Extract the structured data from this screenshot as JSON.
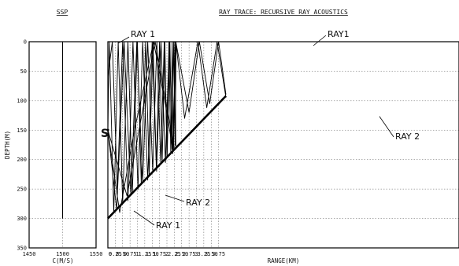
{
  "ssp_panel": {
    "title": "SSP",
    "xlabel": "C(M/S)",
    "xticks": [
      "1450",
      "1500",
      "1550"
    ]
  },
  "ray_panel": {
    "title": "RAY TRACE: RECURSIVE RAY ACOUSTICS",
    "xlabel": "RANGE(KM)",
    "ylabel": "DEPTH(M)"
  },
  "annotations": {
    "source": "S",
    "ray1_top_left": "RAY 1",
    "ray1_top_right": "RAY1",
    "ray2_right": "RAY 2",
    "ray2_bottom": "RAY 2",
    "ray1_bottom": "RAY 1"
  },
  "chart_data": [
    {
      "type": "line",
      "panel": "SSP",
      "title": "SSP",
      "xlabel": "C(M/S)",
      "ylabel": "DEPTH(M)",
      "xlim": [
        1450,
        1550
      ],
      "ylim": [
        350,
        0
      ],
      "xticks": [
        1450,
        1500,
        1550
      ],
      "yticks": [
        0,
        50,
        100,
        150,
        200,
        250,
        300,
        350
      ],
      "grid": true,
      "series": [
        {
          "x": [
            1500,
            1500
          ],
          "y": [
            0,
            300
          ]
        }
      ]
    },
    {
      "type": "line",
      "panel": "RAY TRACE",
      "title": "RAY TRACE: RECURSIVE RAY ACOUSTICS",
      "xlabel": "RANGE(KM)",
      "ylabel": "DEPTH(M)",
      "xlim": [
        0,
        4.0
      ],
      "ylim": [
        350,
        0
      ],
      "xtick_labels": [
        "0",
        "0.25",
        "0.50",
        "0.75",
        "1",
        "1.25",
        "1.50",
        "1.75",
        "2",
        "2.25",
        "2.50",
        "2.75",
        "3",
        "3.25",
        "3.50",
        "3.75"
      ],
      "yticks": [
        0,
        50,
        100,
        150,
        200,
        250,
        300,
        350
      ],
      "grid": true,
      "source": {
        "range_km": 0,
        "depth_m": 150
      },
      "bottom": {
        "x": [
          0,
          4.0
        ],
        "y": [
          300,
          92
        ]
      },
      "series": [
        {
          "name": "RAY 1",
          "x": [
            0,
            0.05,
            0.2,
            0.35,
            0.5,
            0.68,
            0.83,
            1.0,
            1.13,
            1.28,
            1.4,
            1.53,
            1.64,
            1.75,
            1.84,
            1.93,
            2.0,
            2.07,
            2.13,
            2.18,
            2.23,
            2.27,
            2.3
          ],
          "y": [
            150,
            0,
            290,
            0,
            275,
            0,
            255,
            0,
            240,
            0,
            225,
            0,
            213,
            0,
            203,
            0,
            195,
            0,
            188,
            0,
            182,
            0,
            178
          ]
        },
        {
          "name": "RAY 1",
          "x": [
            0,
            0.3,
            0.55,
            0.78,
            0.98,
            1.18,
            1.35,
            1.52,
            1.66,
            1.79,
            1.91,
            2.01,
            2.1,
            2.17,
            2.23,
            2.28,
            2.31
          ],
          "y": [
            150,
            285,
            0,
            260,
            0,
            238,
            0,
            220,
            0,
            205,
            0,
            192,
            0,
            183,
            0,
            176,
            0
          ]
        },
        {
          "name": "RAY 2",
          "x": [
            0,
            0.65,
            1.6,
            2.25
          ],
          "y": [
            150,
            262,
            0,
            180
          ]
        },
        {
          "name": "RAY 2",
          "x": [
            0,
            0.15,
            0.32,
            0.5,
            0.68,
            0.85,
            1.02,
            1.18,
            1.35,
            1.5,
            1.65,
            1.8,
            1.95,
            2.08,
            2.2,
            2.3
          ],
          "y": [
            60,
            0,
            250,
            0,
            270,
            0,
            250,
            0,
            235,
            0,
            220,
            0,
            205,
            0,
            190,
            0
          ]
        },
        {
          "name": "RAY 1",
          "x": [
            2.3,
            2.75,
            3.1,
            3.45,
            3.75,
            4.0
          ],
          "y": [
            0,
            120,
            0,
            105,
            0,
            90
          ]
        },
        {
          "name": "RAY 2",
          "x": [
            2.3,
            2.6,
            3.05,
            3.35,
            3.7,
            4.0
          ],
          "y": [
            0,
            130,
            0,
            112,
            0,
            95
          ]
        },
        {
          "name": "RAY 2",
          "x": [
            0,
            0.4,
            0.9,
            1.55,
            2.0,
            2.2
          ],
          "y": [
            150,
            290,
            150,
            0,
            120,
            185
          ]
        }
      ]
    }
  ]
}
